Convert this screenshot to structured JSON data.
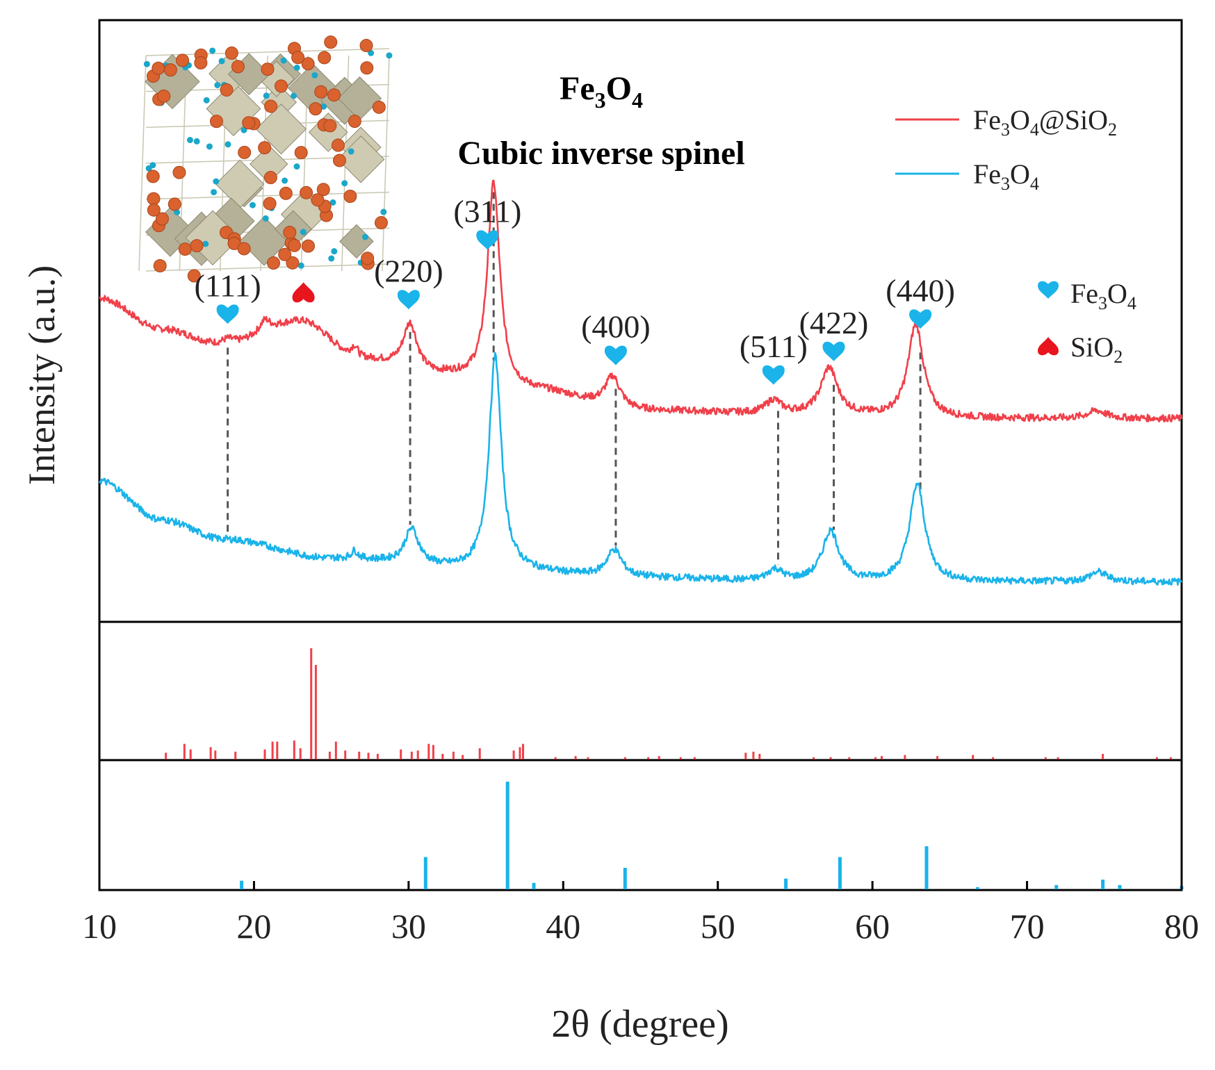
{
  "chart_data": {
    "type": "line",
    "xlabel": "2θ (degree)",
    "ylabel": "Intensity (a.u.)",
    "xlim": [
      10,
      80
    ],
    "x_ticks": [
      {
        "value": 10,
        "label": "10"
      },
      {
        "value": 20,
        "label": "20"
      },
      {
        "value": 30,
        "label": "30"
      },
      {
        "value": 40,
        "label": "40"
      },
      {
        "value": 50,
        "label": "50"
      },
      {
        "value": 60,
        "label": "60"
      },
      {
        "value": 70,
        "label": "70"
      },
      {
        "value": 80,
        "label": "80"
      }
    ],
    "inset": {
      "title_prefix": "Fe",
      "title_sub1": "3",
      "title_mid": "O",
      "title_sub2": "4",
      "subtitle": "Cubic inverse spinel"
    },
    "legend": [
      {
        "series": "Fe3O4@SiO2",
        "prefix": "Fe",
        "s1": "3",
        "mid": "O",
        "s2": "4",
        "suffix": "@SiO",
        "s3": "2",
        "color": "#f0404a"
      },
      {
        "series": "Fe3O4",
        "prefix": "Fe",
        "s1": "3",
        "mid": "O",
        "s2": "4",
        "suffix": "",
        "s3": "",
        "color": "#1ab3ea"
      }
    ],
    "marker_legend": [
      {
        "symbol": "heart",
        "prefix": "Fe",
        "s1": "3",
        "mid": "O",
        "s2": "4",
        "color": "#1ab3ea"
      },
      {
        "symbol": "spade",
        "prefix": "SiO",
        "s1": "2",
        "mid": "",
        "s2": "",
        "color": "#e8141e"
      }
    ],
    "series": [
      {
        "name": "Fe3O4@SiO2",
        "color": "#f0404a",
        "baseline": [
          [
            10,
            0.52
          ],
          [
            14,
            0.44
          ],
          [
            18,
            0.4
          ],
          [
            23,
            0.46
          ],
          [
            27,
            0.36
          ],
          [
            32,
            0.32
          ],
          [
            38,
            0.28
          ],
          [
            45,
            0.23
          ],
          [
            55,
            0.22
          ],
          [
            65,
            0.21
          ],
          [
            75,
            0.21
          ],
          [
            80,
            0.21
          ]
        ],
        "peaks": [
          {
            "center": 18.3,
            "height": 0.015,
            "width": 0.5
          },
          {
            "center": 20.7,
            "height": 0.03,
            "width": 0.4
          },
          {
            "center": 26.5,
            "height": 0.03,
            "width": 0.3
          },
          {
            "center": 30.1,
            "height": 0.12,
            "width": 0.55
          },
          {
            "center": 35.5,
            "height": 0.52,
            "width": 0.48
          },
          {
            "center": 43.2,
            "height": 0.08,
            "width": 0.6
          },
          {
            "center": 53.6,
            "height": 0.035,
            "width": 0.6
          },
          {
            "center": 57.2,
            "height": 0.12,
            "width": 0.65
          },
          {
            "center": 62.8,
            "height": 0.24,
            "width": 0.6
          },
          {
            "center": 74.5,
            "height": 0.02,
            "width": 0.7
          }
        ]
      },
      {
        "name": "Fe3O4",
        "color": "#1ab3ea",
        "baseline": [
          [
            10,
            0.05
          ],
          [
            14,
            -0.05
          ],
          [
            18,
            -0.1
          ],
          [
            25,
            -0.15
          ],
          [
            35,
            -0.18
          ],
          [
            45,
            -0.2
          ],
          [
            55,
            -0.21
          ],
          [
            65,
            -0.21
          ],
          [
            80,
            -0.21
          ]
        ],
        "peaks": [
          {
            "center": 26.5,
            "height": 0.02,
            "width": 0.25
          },
          {
            "center": 30.2,
            "height": 0.09,
            "width": 0.55
          },
          {
            "center": 35.6,
            "height": 0.55,
            "width": 0.48
          },
          {
            "center": 43.3,
            "height": 0.07,
            "width": 0.6
          },
          {
            "center": 53.7,
            "height": 0.03,
            "width": 0.6
          },
          {
            "center": 57.3,
            "height": 0.13,
            "width": 0.65
          },
          {
            "center": 62.9,
            "height": 0.25,
            "width": 0.6
          },
          {
            "center": 74.6,
            "height": 0.025,
            "width": 0.7
          }
        ]
      }
    ],
    "peak_annotations": [
      {
        "label": "(111)",
        "x": 18.3,
        "phase": "Fe3O4",
        "line_to": 18.3
      },
      {
        "label": "(220)",
        "x": 30.0,
        "phase": "Fe3O4",
        "line_to": 30.1
      },
      {
        "label": "(311)",
        "x": 35.1,
        "phase": "Fe3O4",
        "line_to": 35.5
      },
      {
        "label": "(400)",
        "x": 43.4,
        "phase": "Fe3O4",
        "line_to": 43.4
      },
      {
        "label": "(511)",
        "x": 53.6,
        "phase": "Fe3O4",
        "line_to": 53.9
      },
      {
        "label": "(422)",
        "x": 57.5,
        "phase": "Fe3O4",
        "line_to": 57.5
      },
      {
        "label": "(440)",
        "x": 63.1,
        "phase": "Fe3O4",
        "line_to": 63.1
      }
    ],
    "sio2_marker": {
      "x": 23.2
    },
    "reference_sio2": {
      "color": "#f0404a",
      "lines": [
        [
          14.3,
          0.06
        ],
        [
          15.5,
          0.14
        ],
        [
          15.9,
          0.09
        ],
        [
          17.2,
          0.11
        ],
        [
          17.5,
          0.08
        ],
        [
          18.8,
          0.07
        ],
        [
          20.7,
          0.09
        ],
        [
          21.2,
          0.16
        ],
        [
          21.5,
          0.16
        ],
        [
          22.6,
          0.17
        ],
        [
          23.0,
          0.1
        ],
        [
          23.7,
          1.0
        ],
        [
          24.0,
          0.85
        ],
        [
          24.9,
          0.07
        ],
        [
          25.3,
          0.16
        ],
        [
          25.9,
          0.08
        ],
        [
          26.8,
          0.07
        ],
        [
          27.4,
          0.06
        ],
        [
          28.0,
          0.05
        ],
        [
          29.5,
          0.09
        ],
        [
          30.2,
          0.07
        ],
        [
          30.6,
          0.08
        ],
        [
          31.3,
          0.14
        ],
        [
          31.6,
          0.13
        ],
        [
          32.2,
          0.05
        ],
        [
          32.9,
          0.07
        ],
        [
          33.5,
          0.04
        ],
        [
          34.6,
          0.1
        ],
        [
          36.8,
          0.08
        ],
        [
          37.2,
          0.11
        ],
        [
          37.4,
          0.14
        ],
        [
          39.5,
          0.02
        ],
        [
          40.8,
          0.03
        ],
        [
          41.6,
          0.02
        ],
        [
          44.0,
          0.02
        ],
        [
          45.5,
          0.02
        ],
        [
          46.2,
          0.03
        ],
        [
          47.6,
          0.02
        ],
        [
          48.5,
          0.02
        ],
        [
          51.8,
          0.06
        ],
        [
          52.3,
          0.07
        ],
        [
          52.7,
          0.05
        ],
        [
          56.2,
          0.02
        ],
        [
          57.3,
          0.02
        ],
        [
          58.5,
          0.02
        ],
        [
          60.2,
          0.02
        ],
        [
          60.6,
          0.03
        ],
        [
          62.1,
          0.04
        ],
        [
          64.2,
          0.03
        ],
        [
          66.5,
          0.04
        ],
        [
          67.8,
          0.02
        ],
        [
          71.2,
          0.02
        ],
        [
          72.0,
          0.02
        ],
        [
          74.9,
          0.05
        ],
        [
          78.4,
          0.02
        ],
        [
          79.3,
          0.02
        ]
      ]
    },
    "reference_fe3o4": {
      "color": "#1ab3ea",
      "lines": [
        [
          19.2,
          0.08
        ],
        [
          31.1,
          0.3
        ],
        [
          36.4,
          1.0
        ],
        [
          38.1,
          0.06
        ],
        [
          44.0,
          0.2
        ],
        [
          54.4,
          0.1
        ],
        [
          57.9,
          0.3
        ],
        [
          63.5,
          0.4
        ],
        [
          66.8,
          0.02
        ],
        [
          71.9,
          0.04
        ],
        [
          74.9,
          0.09
        ],
        [
          76.0,
          0.04
        ],
        [
          80.0,
          0.03
        ]
      ]
    }
  }
}
